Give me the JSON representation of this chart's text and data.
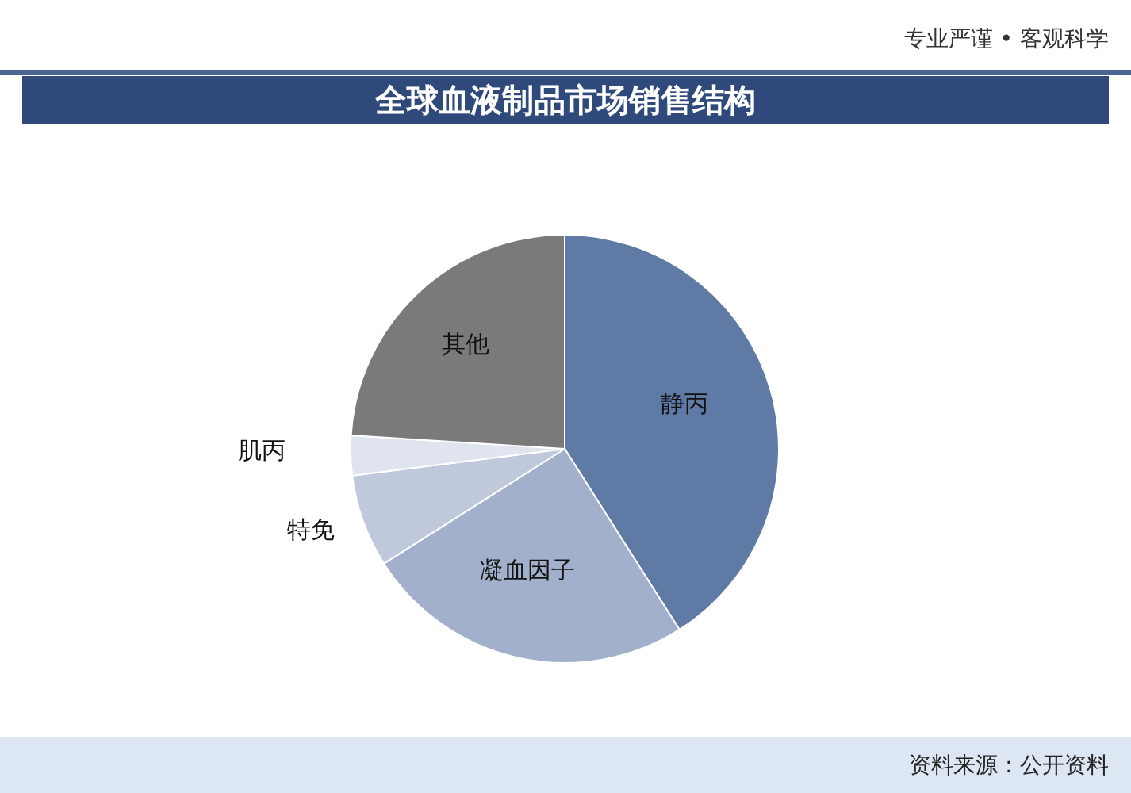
{
  "chart_data": {
    "type": "pie",
    "title": "全球血液制品市场销售结构",
    "subtitle": "专业严谨 • 客观科学",
    "categories": [
      "静丙",
      "凝血因子",
      "特免",
      "肌丙",
      "其他"
    ],
    "values": [
      41,
      25,
      7,
      3,
      24
    ],
    "colors": [
      "#5f7aa5",
      "#a3b0cb",
      "#c0c9db",
      "#dfe4ee",
      "#7a7a7a"
    ],
    "annotations": [
      "资料来源：公开资料"
    ],
    "legend": false
  }
}
